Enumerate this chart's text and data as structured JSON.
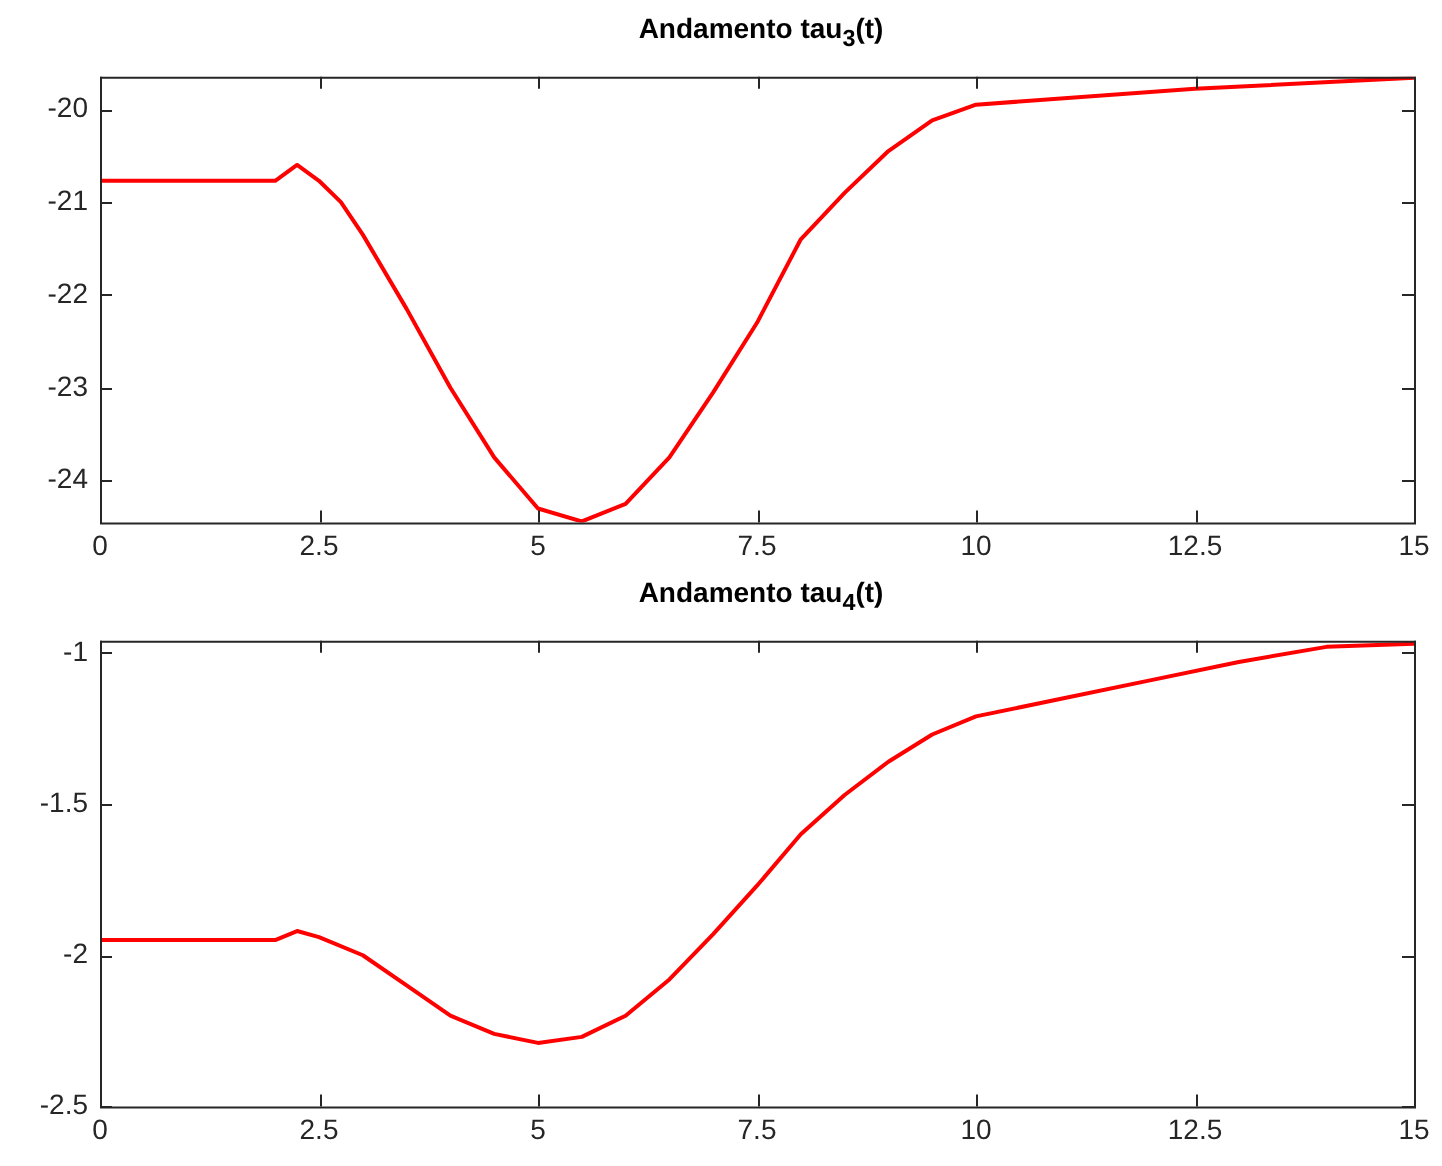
{
  "chart_data": [
    {
      "type": "line",
      "title": "Andamento tau$_{3}$(t)",
      "x": [
        0,
        2,
        2.25,
        2.5,
        2.75,
        3,
        3.5,
        4,
        4.5,
        5,
        5.5,
        6,
        6.5,
        7,
        7.5,
        8,
        8.5,
        9,
        9.5,
        10,
        12.5,
        15
      ],
      "series": [
        {
          "color": "#ff0000",
          "values": [
            -20.77,
            -20.77,
            -20.6,
            -20.77,
            -21.0,
            -21.35,
            -22.15,
            -23.0,
            -23.75,
            -24.3,
            -24.44,
            -24.25,
            -23.75,
            -23.05,
            -22.3,
            -21.4,
            -20.9,
            -20.45,
            -20.12,
            -19.95,
            -19.78,
            -19.66
          ]
        }
      ],
      "xlim": [
        0,
        15
      ],
      "xticks": [
        0,
        2.5,
        5,
        7.5,
        10,
        12.5,
        15
      ],
      "ylim": [
        -24.45,
        -19.65
      ],
      "yticks": [
        -24,
        -23,
        -22,
        -21,
        -20
      ],
      "grid": false,
      "legend": false,
      "marker": "none",
      "line_style": "solid"
    },
    {
      "type": "line",
      "title": "Andamento tau$_{4}$(t)",
      "x": [
        0,
        2,
        2.25,
        2.5,
        3,
        3.5,
        4,
        4.5,
        5,
        5.5,
        6,
        6.5,
        7,
        7.5,
        8,
        8.5,
        9,
        9.5,
        10,
        11,
        12,
        13,
        14,
        15
      ],
      "series": [
        {
          "color": "#ff0000",
          "values": [
            -1.95,
            -1.95,
            -1.92,
            -1.94,
            -2.0,
            -2.1,
            -2.2,
            -2.26,
            -2.29,
            -2.27,
            -2.2,
            -2.08,
            -1.93,
            -1.77,
            -1.6,
            -1.47,
            -1.36,
            -1.27,
            -1.21,
            -1.15,
            -1.09,
            -1.03,
            -0.98,
            -0.97
          ]
        }
      ],
      "xlim": [
        0,
        15
      ],
      "xticks": [
        0,
        2.5,
        5,
        7.5,
        10,
        12.5,
        15
      ],
      "ylim": [
        -2.5,
        -0.96
      ],
      "yticks": [
        -2.5,
        -2,
        -1.5,
        -1
      ],
      "grid": false,
      "legend": false,
      "marker": "none",
      "line_style": "solid"
    }
  ]
}
